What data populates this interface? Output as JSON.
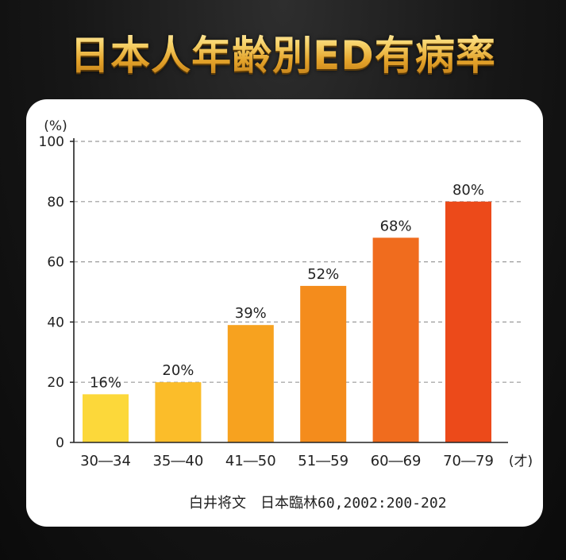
{
  "title": "日本人年齢別ED有病率",
  "source": "白井将文　日本臨林60,2002:200-202",
  "chart_data": {
    "type": "bar",
    "categories": [
      "30―34",
      "35―40",
      "41―50",
      "51―59",
      "60―69",
      "70―79"
    ],
    "values": [
      16,
      20,
      39,
      52,
      68,
      80
    ],
    "value_labels": [
      "16%",
      "20%",
      "39%",
      "52%",
      "68%",
      "80%"
    ],
    "bar_colors": [
      "#fcd83a",
      "#fbbd2a",
      "#f7a21f",
      "#f48c1c",
      "#f06c1e",
      "#ec4a1a"
    ],
    "title": "",
    "ylabel": "(%)",
    "xlabel": "(才)",
    "ylim": [
      0,
      100
    ],
    "yticks": [
      0,
      20,
      40,
      60,
      80,
      100
    ],
    "grid": true
  }
}
